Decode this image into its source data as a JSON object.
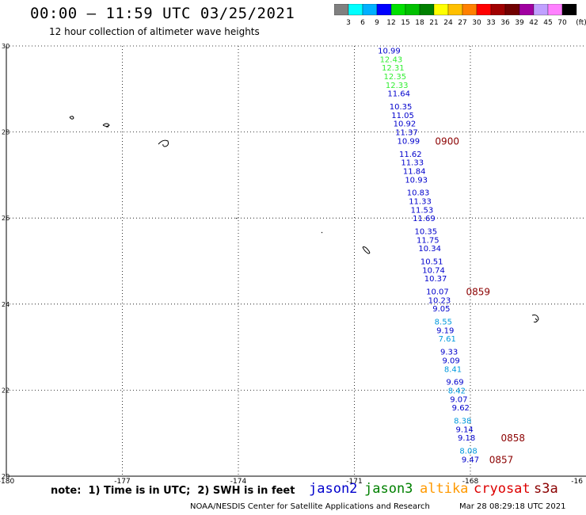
{
  "header": {
    "title": "00:00 – 11:59 UTC 03/25/2021",
    "subtitle": "12 hour collection of altimeter wave heights"
  },
  "legend_scale": {
    "colors": [
      "#808080",
      "#00ffff",
      "#00b0ff",
      "#0000ff",
      "#00e000",
      "#00c000",
      "#008000",
      "#ffff00",
      "#ffc000",
      "#ff8000",
      "#ff0000",
      "#a00000",
      "#700000",
      "#a000a0",
      "#c0a0ff",
      "#ff80ff",
      "#000000"
    ],
    "labels": [
      "3",
      "6",
      "9",
      "12",
      "15",
      "18",
      "21",
      "24",
      "27",
      "30",
      "33",
      "36",
      "39",
      "42",
      "45",
      "70",
      "(ft)"
    ]
  },
  "footer": {
    "note": "note:  1) Time is in UTC;  2) SWH is in feet",
    "satellites": [
      {
        "name": "jason2",
        "color": "#0000cc"
      },
      {
        "name": "jason3",
        "color": "#008000"
      },
      {
        "name": "altika",
        "color": "#ff9900"
      },
      {
        "name": "cryosat",
        "color": "#dd0000"
      },
      {
        "name": "s3a",
        "color": "#8b0000"
      }
    ],
    "credit": "NOAA/NESDIS Center for Satellite Applications and Research",
    "timestamp": "Mar 28 08:29:18 UTC 2021"
  },
  "chart_data": {
    "type": "scatter",
    "title": "12 hour collection of altimeter wave heights",
    "xlim": [
      -180,
      -168
    ],
    "ylim": [
      20,
      30
    ],
    "grid": true,
    "x_ticks": [
      "-180",
      "-177",
      "-174",
      "-171",
      "-168",
      "-16"
    ],
    "y_ticks": [
      "20",
      "22",
      "24",
      "26",
      "28",
      "30"
    ],
    "series": [
      {
        "name": "s3a",
        "points": [
          {
            "lon": -170.1,
            "lat": 29.9,
            "swh": "10.99",
            "color": "#0000cc"
          },
          {
            "lon": -170.05,
            "lat": 29.7,
            "swh": "12.43",
            "color": "#33ee33"
          },
          {
            "lon": -170.0,
            "lat": 29.5,
            "swh": "12.31",
            "color": "#33ee33"
          },
          {
            "lon": -169.95,
            "lat": 29.3,
            "swh": "12.35",
            "color": "#33ee33"
          },
          {
            "lon": -169.9,
            "lat": 29.1,
            "swh": "12.33",
            "color": "#33ee33"
          },
          {
            "lon": -169.85,
            "lat": 28.9,
            "swh": "11.64",
            "color": "#0000cc"
          },
          {
            "lon": -169.8,
            "lat": 28.6,
            "swh": "10.35",
            "color": "#0000cc"
          },
          {
            "lon": -169.75,
            "lat": 28.4,
            "swh": "11.05",
            "color": "#0000cc"
          },
          {
            "lon": -169.7,
            "lat": 28.2,
            "swh": "10.92",
            "color": "#0000cc"
          },
          {
            "lon": -169.65,
            "lat": 28.0,
            "swh": "11.37",
            "color": "#0000cc"
          },
          {
            "lon": -169.6,
            "lat": 27.8,
            "swh": "10.99",
            "color": "#0000cc"
          },
          {
            "lon": -169.55,
            "lat": 27.5,
            "swh": "11.62",
            "color": "#0000cc"
          },
          {
            "lon": -169.5,
            "lat": 27.3,
            "swh": "11.33",
            "color": "#0000cc"
          },
          {
            "lon": -169.45,
            "lat": 27.1,
            "swh": "11.84",
            "color": "#0000cc"
          },
          {
            "lon": -169.4,
            "lat": 26.9,
            "swh": "10.93",
            "color": "#0000cc"
          },
          {
            "lon": -169.35,
            "lat": 26.6,
            "swh": "10.83",
            "color": "#0000cc"
          },
          {
            "lon": -169.3,
            "lat": 26.4,
            "swh": "11.33",
            "color": "#0000cc"
          },
          {
            "lon": -169.25,
            "lat": 26.2,
            "swh": "11.53",
            "color": "#0000cc"
          },
          {
            "lon": -169.2,
            "lat": 26.0,
            "swh": "11.69",
            "color": "#0000cc"
          },
          {
            "lon": -169.15,
            "lat": 25.7,
            "swh": "10.35",
            "color": "#0000cc"
          },
          {
            "lon": -169.1,
            "lat": 25.5,
            "swh": "11.75",
            "color": "#0000cc"
          },
          {
            "lon": -169.05,
            "lat": 25.3,
            "swh": "10.34",
            "color": "#0000cc"
          },
          {
            "lon": -169.0,
            "lat": 25.0,
            "swh": "10.51",
            "color": "#0000cc"
          },
          {
            "lon": -168.95,
            "lat": 24.8,
            "swh": "10.74",
            "color": "#0000cc"
          },
          {
            "lon": -168.9,
            "lat": 24.6,
            "swh": "10.37",
            "color": "#0000cc"
          },
          {
            "lon": -168.85,
            "lat": 24.3,
            "swh": "10.07",
            "color": "#0000cc"
          },
          {
            "lon": -168.8,
            "lat": 24.1,
            "swh": "10.23",
            "color": "#0000cc"
          },
          {
            "lon": -168.75,
            "lat": 23.9,
            "swh": "9.05",
            "color": "#0000cc"
          },
          {
            "lon": -168.7,
            "lat": 23.6,
            "swh": "8.55",
            "color": "#0099dd"
          },
          {
            "lon": -168.65,
            "lat": 23.4,
            "swh": "9.19",
            "color": "#0000cc"
          },
          {
            "lon": -168.6,
            "lat": 23.2,
            "swh": "7.61",
            "color": "#0099dd"
          },
          {
            "lon": -168.55,
            "lat": 22.9,
            "swh": "9.33",
            "color": "#0000cc"
          },
          {
            "lon": -168.5,
            "lat": 22.7,
            "swh": "9.09",
            "color": "#0000cc"
          },
          {
            "lon": -168.45,
            "lat": 22.5,
            "swh": "8.41",
            "color": "#0099dd"
          },
          {
            "lon": -168.4,
            "lat": 22.2,
            "swh": "9.69",
            "color": "#0000cc"
          },
          {
            "lon": -168.35,
            "lat": 22.0,
            "swh": "8.42",
            "color": "#0099dd"
          },
          {
            "lon": -168.3,
            "lat": 21.8,
            "swh": "9.07",
            "color": "#0000cc"
          },
          {
            "lon": -168.25,
            "lat": 21.6,
            "swh": "9.62",
            "color": "#0000cc"
          },
          {
            "lon": -168.2,
            "lat": 21.3,
            "swh": "8.38",
            "color": "#0099dd"
          },
          {
            "lon": -168.15,
            "lat": 21.1,
            "swh": "9.14",
            "color": "#0000cc"
          },
          {
            "lon": -168.1,
            "lat": 20.9,
            "swh": "9.18",
            "color": "#0000cc"
          },
          {
            "lon": -168.05,
            "lat": 20.6,
            "swh": "8.08",
            "color": "#0099dd"
          },
          {
            "lon": -168.0,
            "lat": 20.4,
            "swh": "9.47",
            "color": "#0000cc"
          }
        ]
      }
    ],
    "time_labels": [
      {
        "text": "0900",
        "lon": -168.6,
        "lat": 27.8
      },
      {
        "text": "0859",
        "lon": -167.8,
        "lat": 24.3
      },
      {
        "text": "0858",
        "lon": -166.9,
        "lat": 20.9
      },
      {
        "text": "0857",
        "lon": -167.2,
        "lat": 20.4
      }
    ],
    "time_label_color": "#8b0000"
  }
}
